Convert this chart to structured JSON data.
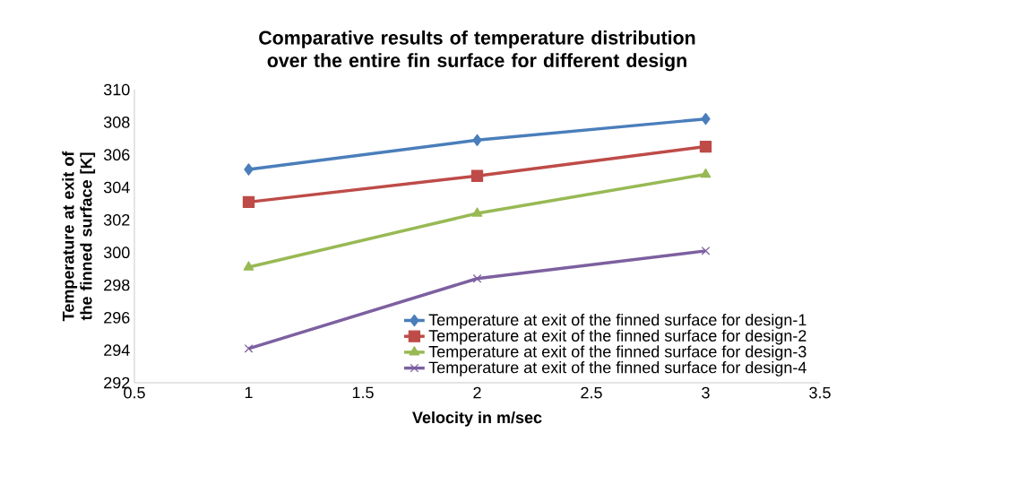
{
  "chart_data": {
    "type": "line",
    "title": "Comparative results of temperature distribution over the entire fin surface for different design",
    "xlabel": "Velocity in m/sec",
    "ylabel": "Temperature at exit of the finned surface [K]",
    "x": [
      1,
      2,
      3
    ],
    "series": [
      {
        "name": "Temperature at exit of the finned surface for design-1",
        "color": "#4a7ebb",
        "marker": "diamond",
        "values": [
          305.1,
          306.9,
          308.2
        ]
      },
      {
        "name": "Temperature at exit of the finned surface for design-2",
        "color": "#be4b48",
        "marker": "square",
        "values": [
          303.1,
          304.7,
          306.5
        ]
      },
      {
        "name": "Temperature at exit of the finned surface for design-3",
        "color": "#98b954",
        "marker": "triangle",
        "values": [
          299.1,
          302.4,
          304.8
        ]
      },
      {
        "name": "Temperature at exit of the finned surface for design-4",
        "color": "#7d60a0",
        "marker": "cross",
        "values": [
          294.1,
          298.4,
          300.1
        ]
      }
    ],
    "xlim": [
      0.5,
      3.5
    ],
    "xticks": [
      0.5,
      1,
      1.5,
      2,
      2.5,
      3,
      3.5
    ],
    "ylim": [
      292,
      310
    ],
    "yticks": [
      292,
      294,
      296,
      298,
      300,
      302,
      304,
      306,
      308,
      310
    ],
    "grid": false,
    "legend": "bottom right",
    "line_style": "solid"
  }
}
